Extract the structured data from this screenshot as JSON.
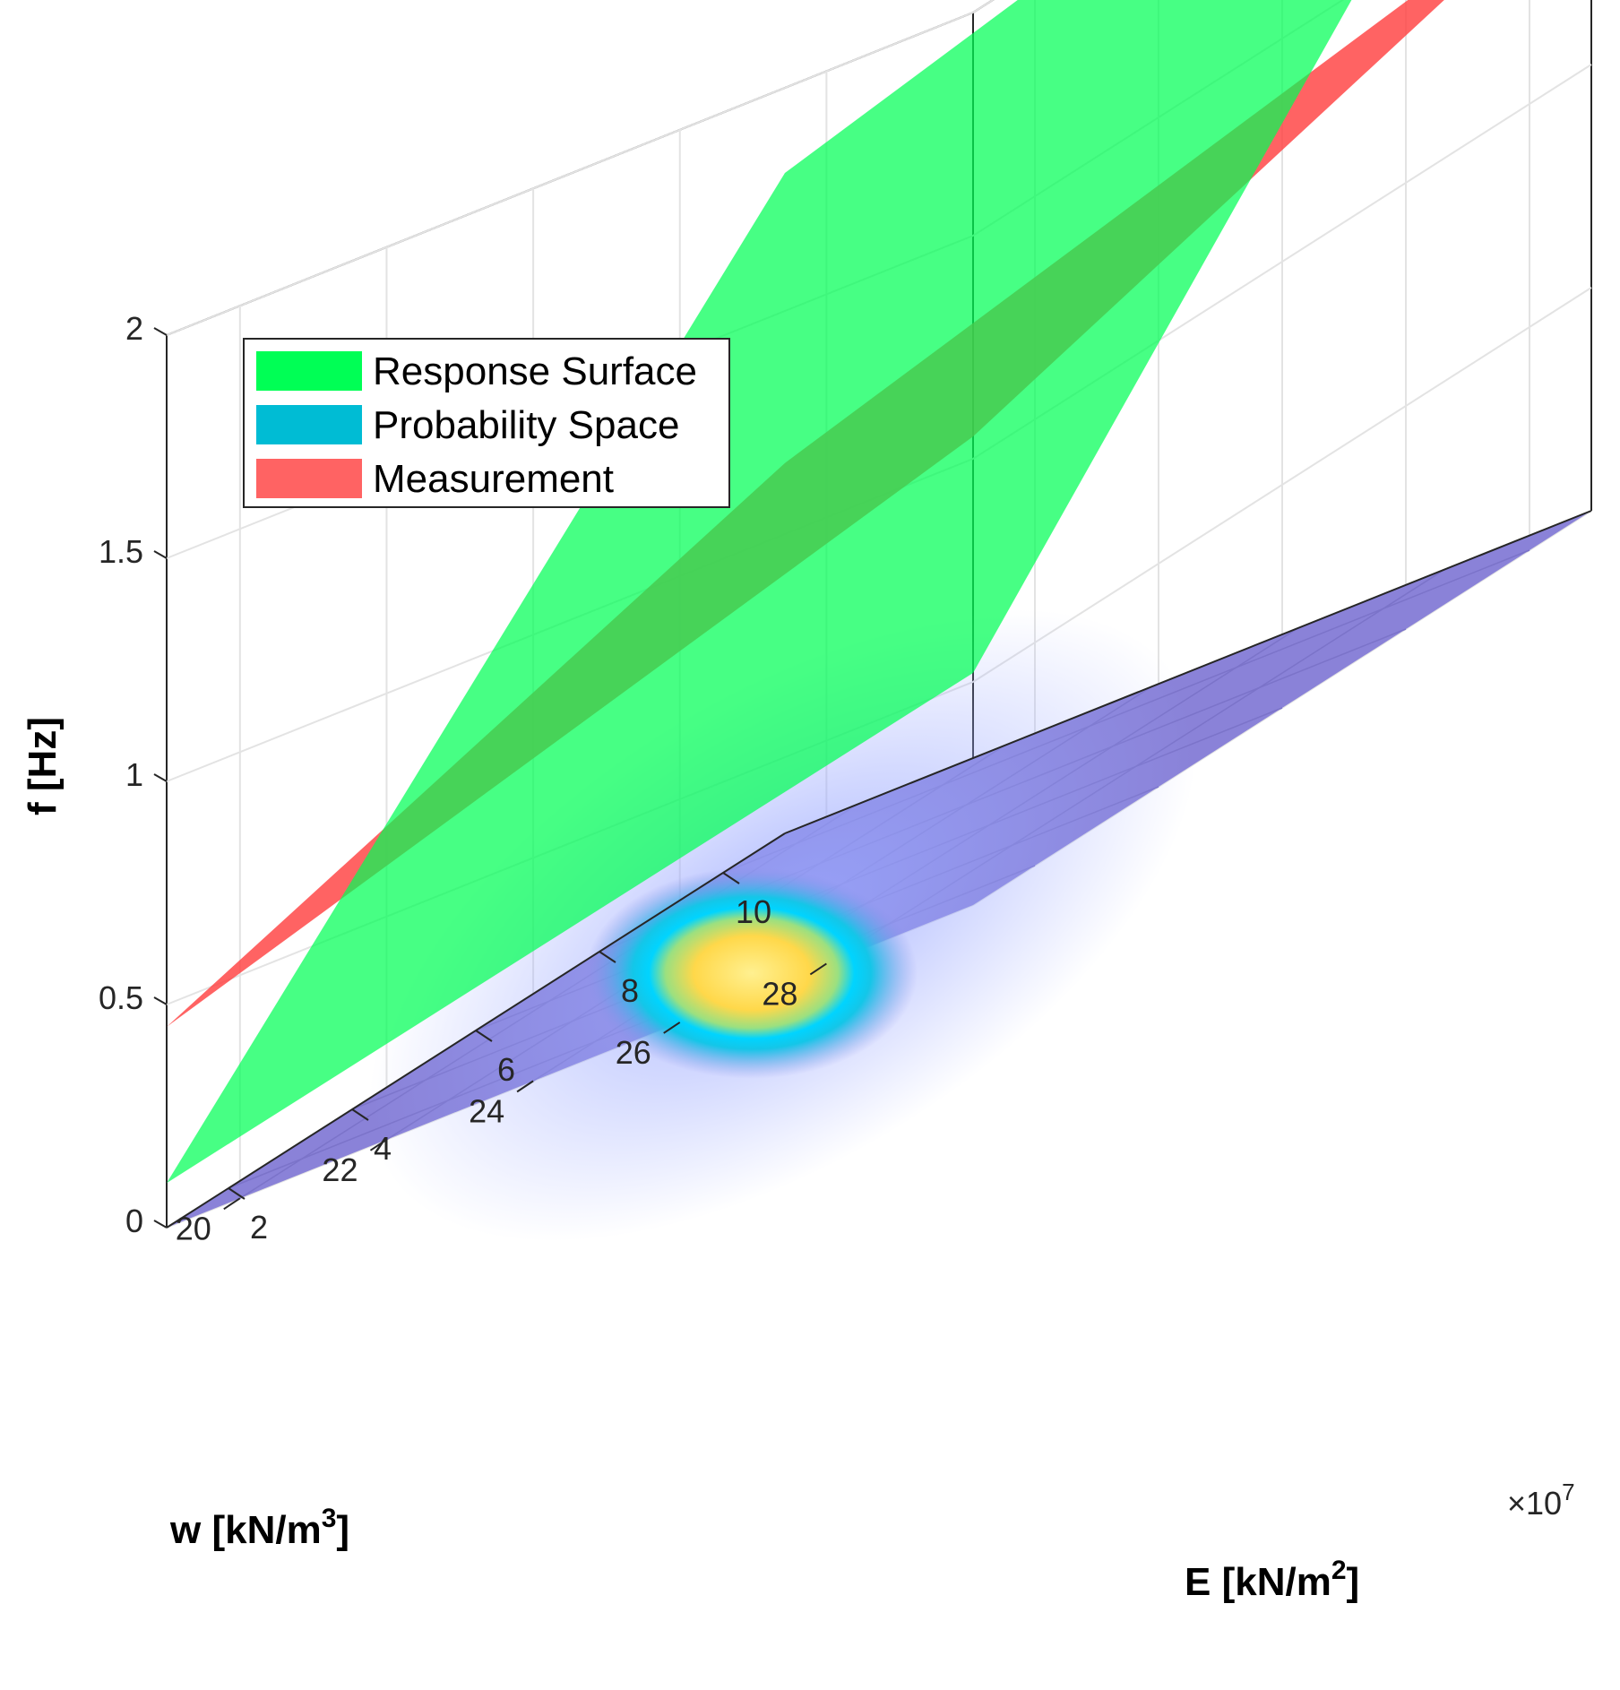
{
  "chart_data": {
    "type": "surface3d",
    "xlabel": "E [kN/m",
    "xlabel_sup": "2",
    "xlabel_end": "]",
    "ylabel": "w [kN/m",
    "ylabel_sup": "3",
    "ylabel_end": "]",
    "zlabel": "f [Hz]",
    "x_exponent": "×10",
    "x_exponent_sup": "7",
    "xlim": [
      1,
      11
    ],
    "ylim": [
      19,
      30
    ],
    "zlim": [
      0,
      2
    ],
    "x_ticks": [
      "2",
      "4",
      "6",
      "8",
      "10"
    ],
    "x_tick_values": [
      2,
      4,
      6,
      8,
      10
    ],
    "y_ticks": [
      "20",
      "22",
      "24",
      "26",
      "28"
    ],
    "y_tick_values": [
      20,
      22,
      24,
      26,
      28
    ],
    "z_ticks": [
      "0",
      "0.5",
      "1",
      "1.5",
      "2"
    ],
    "z_tick_values": [
      0,
      0.5,
      1,
      1.5,
      2
    ],
    "grid": true,
    "legend_position": "top-left",
    "series": [
      {
        "name": "Response Surface",
        "color": "#00ff55",
        "corners": [
          {
            "E": 1,
            "w": 30,
            "f": 0.52
          },
          {
            "E": 1,
            "w": 19,
            "f": 0.1
          },
          {
            "E": 11,
            "w": 19,
            "f": 1.48
          },
          {
            "E": 11,
            "w": 30,
            "f": 2.1
          }
        ]
      },
      {
        "name": "Probability Space",
        "color": "#00bcd4",
        "peak": {
          "E": 2.4,
          "w": 25.8
        },
        "peak_color": "#ffee80"
      },
      {
        "name": "Measurement",
        "color": "#ff3c3c",
        "corners": [
          {
            "E": 1,
            "w": 30,
            "f": 1.05
          },
          {
            "E": 1,
            "w": 19,
            "f": 0.45
          },
          {
            "E": 11,
            "w": 19,
            "f": 0.83
          },
          {
            "E": 11,
            "w": 30,
            "f": 1.45
          }
        ]
      }
    ]
  }
}
